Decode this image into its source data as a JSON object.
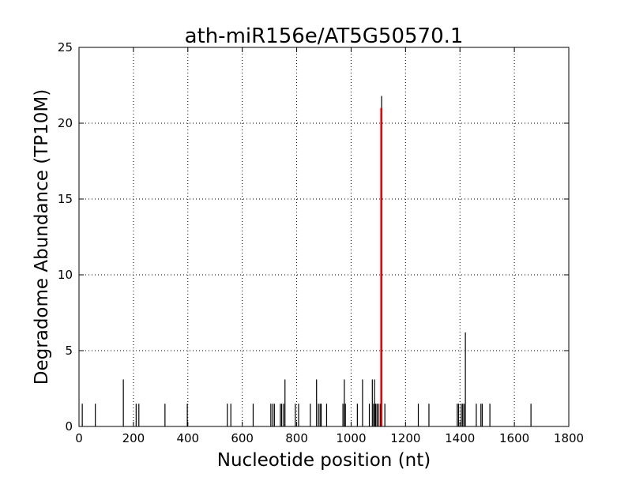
{
  "chart_data": {
    "type": "bar",
    "title": "ath-miR156e/AT5G50570.1",
    "xlabel": "Nucleotide position (nt)",
    "ylabel": "Degradome Abundance (TP10M)",
    "xlim": [
      0,
      1800
    ],
    "ylim": [
      0,
      25
    ],
    "xticks": [
      0,
      200,
      400,
      600,
      800,
      1000,
      1200,
      1400,
      1600,
      1800
    ],
    "yticks": [
      0,
      5,
      10,
      15,
      20,
      25
    ],
    "grid": true,
    "bar_color": "#000000",
    "highlight_color": "#e60000",
    "series": [
      {
        "x": [
          12,
          60,
          163,
          210,
          220,
          316,
          398,
          545,
          558,
          640,
          705,
          712,
          718,
          740,
          745,
          752,
          757,
          795,
          807,
          850,
          873,
          880,
          886,
          890,
          910,
          970,
          975,
          979,
          1023,
          1042,
          1067,
          1078,
          1083,
          1086,
          1090,
          1095,
          1100,
          1107,
          1112,
          1124,
          1247,
          1286,
          1390,
          1395,
          1405,
          1410,
          1415,
          1420,
          1460,
          1477,
          1482,
          1510,
          1661
        ],
        "values": [
          1.5,
          1.5,
          3.1,
          1.5,
          1.5,
          1.5,
          1.5,
          1.5,
          1.5,
          1.5,
          1.5,
          1.5,
          1.5,
          1.5,
          1.5,
          1.5,
          3.1,
          1.5,
          1.5,
          1.5,
          3.1,
          1.5,
          1.5,
          1.5,
          1.5,
          1.5,
          3.1,
          1.5,
          1.5,
          3.1,
          1.5,
          3.1,
          1.5,
          3.1,
          1.5,
          1.5,
          1.5,
          1.5,
          21.8,
          1.5,
          1.5,
          1.5,
          1.5,
          1.5,
          1.5,
          1.5,
          1.5,
          6.2,
          1.5,
          1.5,
          1.5,
          1.5,
          1.5
        ]
      },
      {
        "x": [
          1111
        ],
        "values": [
          21.0
        ],
        "highlight": true
      }
    ]
  }
}
